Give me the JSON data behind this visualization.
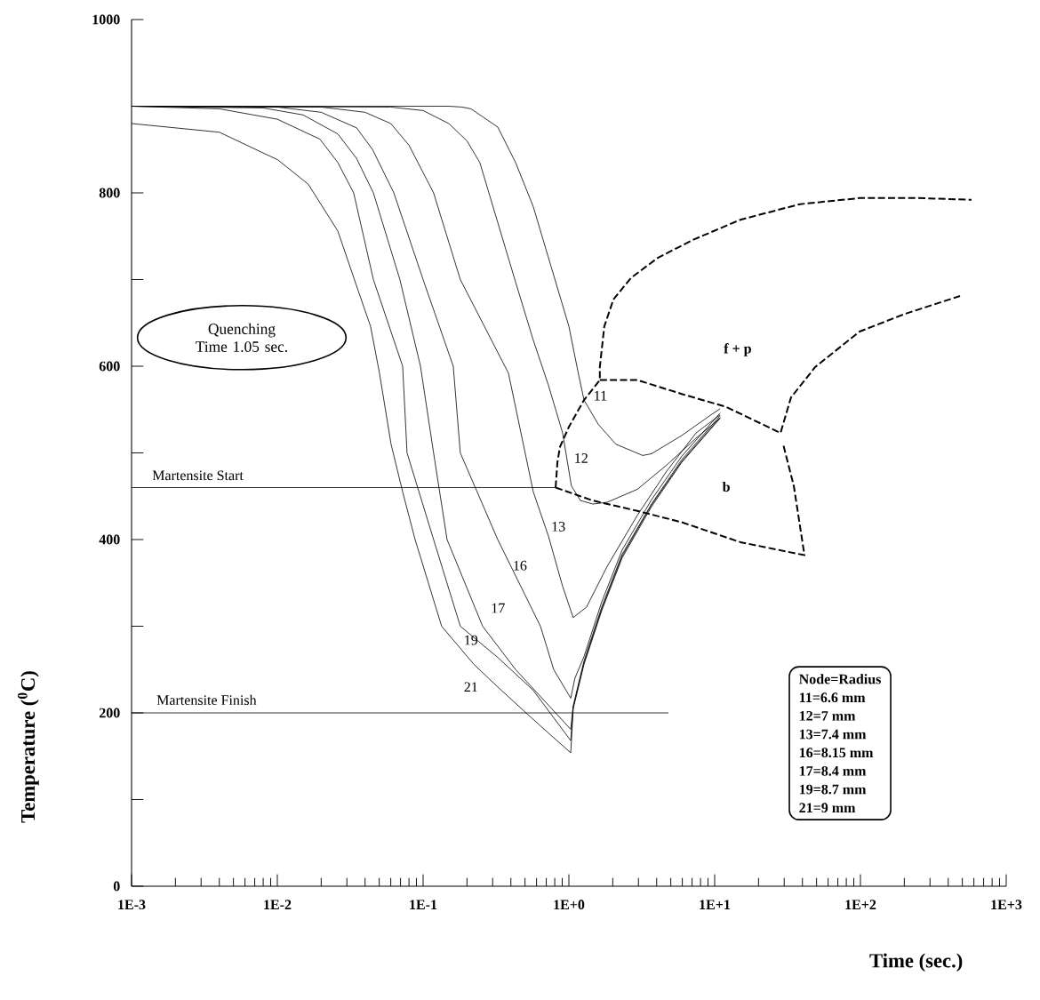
{
  "chart_data": {
    "type": "line",
    "xlabel": "Time (sec.)",
    "ylabel": "Temperature ($^{0}$C)",
    "log": "x",
    "marker": "none",
    "xlim": [
      0.001,
      1000
    ],
    "ylim": [
      0,
      1000
    ],
    "xticks": [
      {
        "value": 0.001,
        "label": "1E-3"
      },
      {
        "value": 0.01,
        "label": "1E-2"
      },
      {
        "value": 0.1,
        "label": "1E-1"
      },
      {
        "value": 1,
        "label": "1E+0"
      },
      {
        "value": 10,
        "label": "1E+1"
      },
      {
        "value": 100,
        "label": "1E+2"
      },
      {
        "value": 1000,
        "label": "1E+3"
      }
    ],
    "yticks": [
      0,
      {
        "value": 100,
        "label": null
      },
      200,
      {
        "value": 300,
        "label": null
      },
      400,
      {
        "value": 500,
        "label": null
      },
      600,
      {
        "value": 700,
        "label": null
      },
      800,
      {
        "value": 900,
        "label": null
      },
      1000
    ],
    "series": [
      {
        "name": "11",
        "color": "#000000",
        "x": [
          0.001,
          0.15,
          0.185,
          0.213,
          0.325,
          0.431,
          0.57,
          0.755,
          1.0,
          1.15,
          1.27,
          1.59,
          2.1,
          3.21,
          3.69,
          5.94,
          9.46,
          10.9
        ],
        "values": [
          900,
          900,
          899,
          897,
          876,
          835,
          784,
          715,
          646,
          595,
          561,
          533,
          510,
          497,
          499,
          520,
          544,
          551
        ]
      },
      {
        "name": "12",
        "color": "#000000",
        "x": [
          0.001,
          0.06,
          0.1,
          0.15,
          0.2,
          0.245,
          0.325,
          0.431,
          0.57,
          0.724,
          0.906,
          1.04,
          1.2,
          1.46,
          1.83,
          2.95,
          4.69,
          7.45,
          10.9
        ],
        "values": [
          900,
          899,
          895,
          880,
          860,
          835,
          766,
          697,
          630,
          578,
          523,
          462,
          445,
          441,
          443,
          458,
          486,
          517,
          540
        ]
      },
      {
        "name": "13",
        "color": "#000000",
        "x": [
          0.001,
          0.02,
          0.04,
          0.06,
          0.08,
          0.118,
          0.18,
          0.385,
          0.57,
          0.724,
          0.906,
          1.07,
          1.32,
          1.83,
          2.95,
          4.69,
          7.45,
          10.9
        ],
        "values": [
          900,
          899,
          893,
          880,
          855,
          800,
          700,
          592,
          455,
          404,
          346,
          310,
          322,
          369,
          428,
          479,
          523,
          544
        ]
      },
      {
        "name": "16",
        "color": "#000000",
        "x": [
          0.001,
          0.01,
          0.02,
          0.035,
          0.045,
          0.063,
          0.1,
          0.161,
          0.18,
          0.325,
          0.638,
          0.787,
          1.03,
          1.1,
          1.27,
          1.68,
          2.32,
          3.69,
          5.94,
          10.9
        ],
        "values": [
          900,
          899,
          893,
          875,
          850,
          800,
          700,
          600,
          500,
          400,
          300,
          250,
          217,
          240,
          265,
          328,
          388,
          446,
          496,
          546
        ]
      },
      {
        "name": "17",
        "color": "#000000",
        "x": [
          0.001,
          0.008,
          0.015,
          0.026,
          0.0349,
          0.0456,
          0.0693,
          0.0959,
          0.118,
          0.146,
          0.256,
          0.431,
          1.03,
          1.07,
          1.27,
          1.68,
          2.32,
          3.69,
          5.94,
          10.9
        ],
        "values": [
          900,
          898,
          890,
          868,
          840,
          800,
          700,
          600,
          500,
          400,
          300,
          250,
          181,
          208,
          260,
          322,
          383,
          441,
          492,
          543
        ]
      },
      {
        "name": "19",
        "color": "#000000",
        "x": [
          0.001,
          0.004,
          0.01,
          0.0196,
          0.026,
          0.0334,
          0.0456,
          0.0724,
          0.0776,
          0.118,
          0.18,
          0.325,
          0.57,
          1.03,
          1.07,
          1.27,
          1.68,
          2.32,
          3.69,
          5.94,
          10.9
        ],
        "values": [
          900,
          897,
          885,
          862,
          835,
          800,
          700,
          600,
          500,
          400,
          300,
          264,
          226,
          168,
          206,
          258,
          320,
          381,
          440,
          490,
          541
        ]
      },
      {
        "name": "21",
        "color": "#000000",
        "x": [
          0.001,
          0.004,
          0.0101,
          0.0163,
          0.026,
          0.0359,
          0.0436,
          0.0502,
          0.0603,
          0.0724,
          0.0881,
          0.134,
          0.223,
          0.325,
          0.516,
          0.755,
          1.03,
          1.07,
          1.27,
          1.68,
          2.32,
          3.69,
          5.94,
          10.9
        ],
        "values": [
          880,
          870,
          838,
          810,
          756,
          687,
          646,
          592,
          510,
          455,
          400,
          300,
          256,
          230,
          199,
          174,
          154,
          205,
          256,
          318,
          379,
          438,
          489,
          540
        ]
      },
      {
        "name": "Martensite Start",
        "color": "#000000",
        "x": [
          0.001,
          0.811
        ],
        "values": [
          460,
          460
        ]
      },
      {
        "name": "Martensite Finish",
        "color": "#000000",
        "x": [
          0.001,
          4.82
        ],
        "values": [
          200,
          200
        ]
      },
      {
        "color": "#000000",
        "line_style": "dashed",
        "x": [
          0.811,
          0.834,
          0.869,
          1.0,
          1.27,
          1.63,
          1.63,
          1.75,
          2.02,
          2.67,
          4.07,
          7.14,
          15,
          38.5,
          98.6,
          249,
          578
        ],
        "values": [
          460,
          489,
          507,
          530,
          561,
          584,
          599,
          646,
          677,
          702,
          725,
          746,
          769,
          787,
          794,
          794,
          792
        ]
      },
      {
        "color": "#000000",
        "line_style": "dashed",
        "x": [
          1.63,
          2.95,
          5.94,
          12,
          28.3,
          33.4,
          48.9,
          98.6,
          199,
          482
        ],
        "values": [
          584,
          584,
          568,
          553,
          523,
          564,
          599,
          640,
          660,
          681
        ]
      },
      {
        "color": "#000000",
        "line_style": "dashed",
        "x": [
          0.811,
          1.46,
          2.95,
          5.94,
          15,
          41.3,
          34.9,
          29.5
        ],
        "values": [
          460,
          445,
          433,
          420,
          397,
          382,
          462,
          510
        ]
      }
    ],
    "annotations": [
      "Quenching Time 1.05 sec.",
      "f + p",
      "b",
      "Node=Radius",
      "11=6.6 mm",
      "12=7 mm",
      "13=7.4 mm",
      "16=8.15 mm",
      "17=8.4 mm",
      "19=8.7 mm",
      "21=9 mm"
    ]
  }
}
